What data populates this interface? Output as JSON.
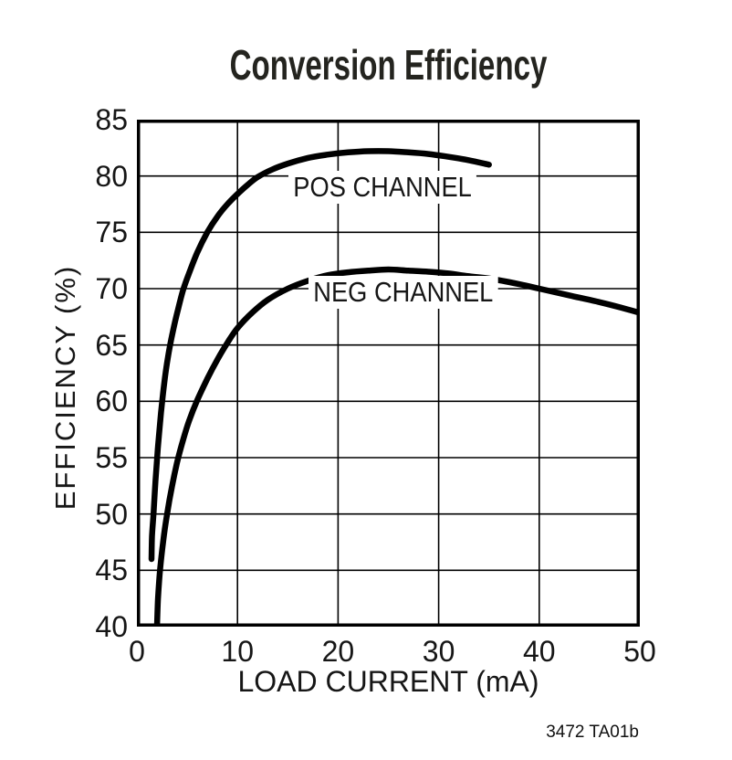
{
  "title": "Conversion Efficiency",
  "figure_reference": "3472 TA01b",
  "colors": {
    "background": "#ffffff",
    "curve": "#000000",
    "grid": "#000000",
    "text": "#161616"
  },
  "chart_data": {
    "type": "line",
    "title": "Conversion Efficiency",
    "xlabel": "LOAD CURRENT (mA)",
    "ylabel": "EFFICIENCY (%)",
    "xlim": [
      0,
      50
    ],
    "ylim": [
      40,
      85
    ],
    "x_ticks": [
      0,
      10,
      20,
      30,
      40,
      50
    ],
    "y_ticks": [
      85,
      80,
      75,
      70,
      65,
      60,
      55,
      50,
      45,
      40
    ],
    "grid": "on",
    "legend_position": "inline-labels",
    "series": [
      {
        "name": "POS CHANNEL",
        "points": [
          [
            1.45,
            46
          ],
          [
            1.5,
            48
          ],
          [
            1.65,
            50
          ],
          [
            1.85,
            53
          ],
          [
            2.1,
            56
          ],
          [
            2.4,
            59
          ],
          [
            2.7,
            61.5
          ],
          [
            3.1,
            64
          ],
          [
            3.6,
            66.3
          ],
          [
            4.1,
            68.2
          ],
          [
            4.6,
            69.9
          ],
          [
            5.2,
            71.4
          ],
          [
            6,
            73.2
          ],
          [
            7,
            75
          ],
          [
            8,
            76.4
          ],
          [
            9,
            77.5
          ],
          [
            10,
            78.4
          ],
          [
            11,
            79.2
          ],
          [
            12,
            79.9
          ],
          [
            13.5,
            80.6
          ],
          [
            15,
            81.1
          ],
          [
            17,
            81.6
          ],
          [
            19,
            81.9
          ],
          [
            21,
            82.1
          ],
          [
            23,
            82.2
          ],
          [
            25,
            82.2
          ],
          [
            27,
            82.1
          ],
          [
            29,
            81.95
          ],
          [
            31,
            81.7
          ],
          [
            33,
            81.4
          ],
          [
            35,
            81
          ]
        ]
      },
      {
        "name": "NEG CHANNEL",
        "points": [
          [
            2.0,
            40
          ],
          [
            2.1,
            42.5
          ],
          [
            2.3,
            45
          ],
          [
            2.6,
            47.5
          ],
          [
            3.0,
            50
          ],
          [
            3.5,
            52.5
          ],
          [
            4.0,
            54.6
          ],
          [
            4.6,
            56.6
          ],
          [
            5.2,
            58.3
          ],
          [
            6.0,
            60.1
          ],
          [
            7.0,
            62
          ],
          [
            8.0,
            63.7
          ],
          [
            9.0,
            65.2
          ],
          [
            10,
            66.5
          ],
          [
            11.5,
            67.9
          ],
          [
            13,
            69
          ],
          [
            15,
            70
          ],
          [
            17,
            70.7
          ],
          [
            19,
            71.2
          ],
          [
            21,
            71.45
          ],
          [
            23,
            71.6
          ],
          [
            25,
            71.7
          ],
          [
            27,
            71.6
          ],
          [
            29,
            71.5
          ],
          [
            31,
            71.35
          ],
          [
            33,
            71.1
          ],
          [
            35,
            70.9
          ],
          [
            38,
            70.4
          ],
          [
            40,
            70
          ],
          [
            43,
            69.4
          ],
          [
            46,
            68.8
          ],
          [
            48,
            68.35
          ],
          [
            50,
            67.85
          ]
        ]
      }
    ]
  }
}
